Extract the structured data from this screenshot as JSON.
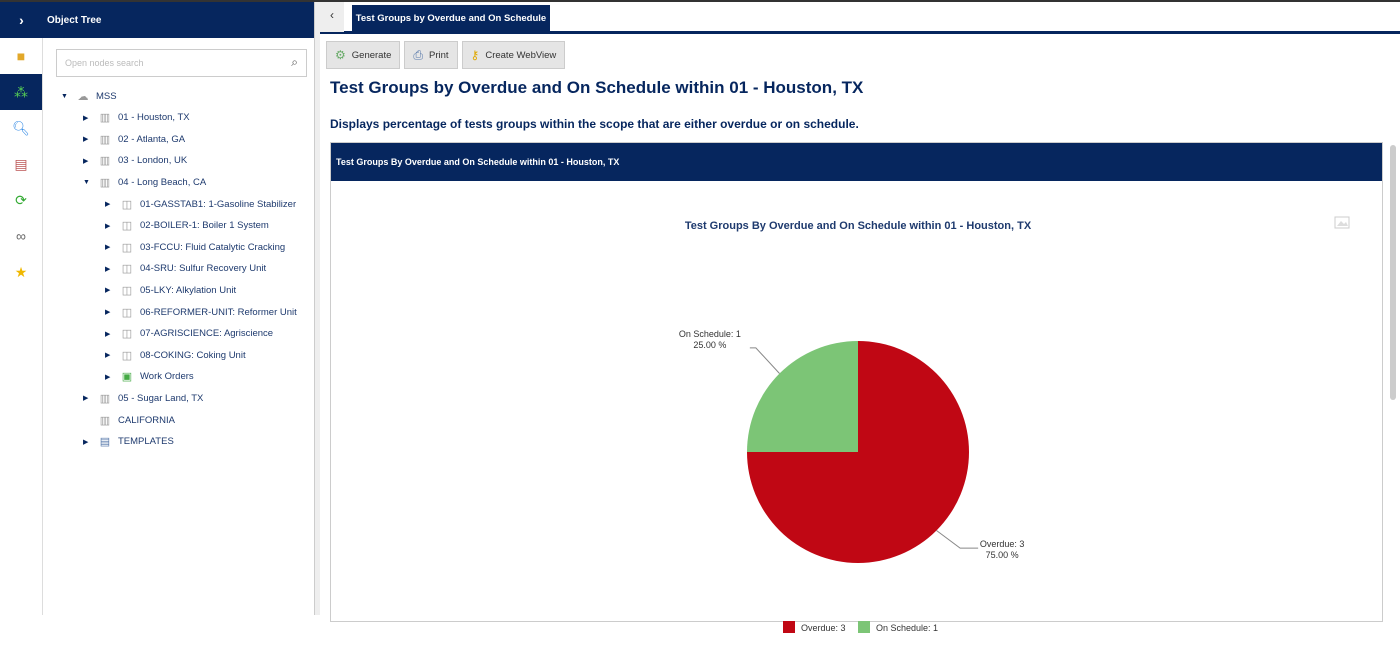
{
  "sidebar": {
    "title": "Object Tree",
    "search_placeholder": "Open nodes search",
    "rail_icons": [
      "package-icon",
      "hierarchy-icon",
      "search-icon",
      "report-icon",
      "refresh-icon",
      "link-icon",
      "star-icon"
    ],
    "tree": [
      {
        "label": "MSS",
        "level": 0,
        "state": "expanded",
        "icon": "cloud-icon"
      },
      {
        "label": "01 - Houston, TX",
        "level": 1,
        "state": "collapsed",
        "icon": "building-icon"
      },
      {
        "label": "02 - Atlanta, GA",
        "level": 1,
        "state": "collapsed",
        "icon": "building-icon"
      },
      {
        "label": "03 - London, UK",
        "level": 1,
        "state": "collapsed",
        "icon": "building-icon"
      },
      {
        "label": "04 - Long Beach, CA",
        "level": 1,
        "state": "expanded",
        "icon": "building-icon"
      },
      {
        "label": "01-GASSTAB1: 1-Gasoline Stabilizer",
        "level": 2,
        "state": "collapsed",
        "icon": "unit-icon"
      },
      {
        "label": "02-BOILER-1: Boiler 1 System",
        "level": 2,
        "state": "collapsed",
        "icon": "unit-icon"
      },
      {
        "label": "03-FCCU: Fluid Catalytic Cracking",
        "level": 2,
        "state": "collapsed",
        "icon": "unit-icon"
      },
      {
        "label": "04-SRU: Sulfur Recovery Unit",
        "level": 2,
        "state": "collapsed",
        "icon": "unit-icon"
      },
      {
        "label": "05-LKY: Alkylation Unit",
        "level": 2,
        "state": "collapsed",
        "icon": "unit-icon"
      },
      {
        "label": "06-REFORMER-UNIT: Reformer Unit",
        "level": 2,
        "state": "collapsed",
        "icon": "unit-icon"
      },
      {
        "label": "07-AGRISCIENCE: Agriscience",
        "level": 2,
        "state": "collapsed",
        "icon": "unit-icon"
      },
      {
        "label": "08-COKING: Coking Unit",
        "level": 2,
        "state": "collapsed",
        "icon": "unit-icon"
      },
      {
        "label": "Work Orders",
        "level": 2,
        "state": "collapsed",
        "icon": "work-orders-icon"
      },
      {
        "label": "05 - Sugar Land, TX",
        "level": 1,
        "state": "collapsed",
        "icon": "building-icon"
      },
      {
        "label": "CALIFORNIA",
        "level": 1,
        "state": "leaf",
        "icon": "building-icon"
      },
      {
        "label": "TEMPLATES",
        "level": 1,
        "state": "collapsed",
        "icon": "template-icon"
      }
    ]
  },
  "tab": {
    "label": "Test Groups by Overdue and On Schedule"
  },
  "toolbar": {
    "generate": "Generate",
    "print": "Print",
    "webview": "Create WebView"
  },
  "page": {
    "title": "Test Groups by Overdue and On Schedule within 01 - Houston, TX",
    "description": "Displays percentage of tests groups within the scope that are either overdue or on schedule.",
    "panel_title": "Test Groups By Overdue and On Schedule within 01 - Houston, TX"
  },
  "colors": {
    "navy": "#06265e",
    "overdue": "#c00714",
    "on_schedule": "#7cc576"
  },
  "chart_data": {
    "type": "pie",
    "title": "Test Groups By Overdue and On Schedule within 01 - Houston, TX",
    "slices": [
      {
        "name": "Overdue",
        "value": 3,
        "percent": "75.00 %",
        "label": "Overdue: 3",
        "color": "#c00714"
      },
      {
        "name": "On Schedule",
        "value": 1,
        "percent": "25.00 %",
        "label": "On Schedule: 1",
        "color": "#7cc576"
      }
    ],
    "legend": "bottom"
  }
}
